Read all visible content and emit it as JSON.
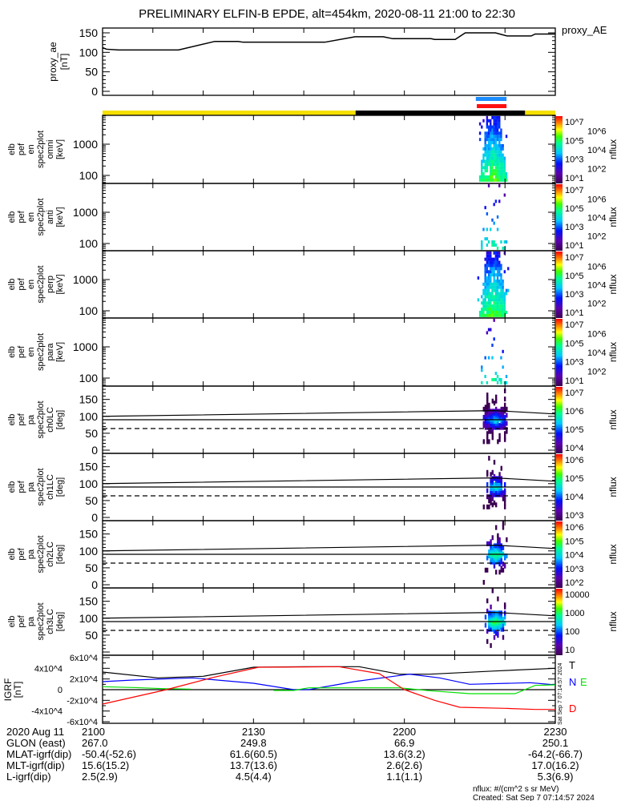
{
  "title": "PRELIMINARY ELFIN-B EPDE, alt=454km, 2020-08-11 21:00 to 22:30",
  "top_panel": {
    "ylabel": [
      "proxy_ae",
      "[nT]"
    ],
    "legend": "proxy_AE",
    "yticks": [
      "150",
      "100",
      "50",
      "0"
    ]
  },
  "panels": [
    {
      "ylabel": [
        "elb",
        "pef",
        "en",
        "spec2plot",
        "omni",
        "[keV]"
      ],
      "kind": "energy",
      "yticks": [
        "1000",
        "100"
      ],
      "cbar_label": "nflux",
      "cbar_ticks": [
        "10^7",
        "10^6",
        "10^5",
        "10^4",
        "10^3",
        "10^2",
        "10^1"
      ]
    },
    {
      "ylabel": [
        "elb",
        "pef",
        "en",
        "spec2plot",
        "anti",
        "[keV]"
      ],
      "kind": "energy",
      "yticks": [
        "1000",
        "100"
      ],
      "cbar_label": "nflux",
      "cbar_ticks": [
        "10^7",
        "10^6",
        "10^5",
        "10^4",
        "10^3",
        "10^2",
        "10^1"
      ]
    },
    {
      "ylabel": [
        "elb",
        "pef",
        "en",
        "spec2plot",
        "perp",
        "[keV]"
      ],
      "kind": "energy",
      "yticks": [
        "1000",
        "100"
      ],
      "cbar_label": "nflux",
      "cbar_ticks": [
        "10^7",
        "10^6",
        "10^5",
        "10^4",
        "10^3",
        "10^2",
        "10^1"
      ]
    },
    {
      "ylabel": [
        "elb",
        "pef",
        "en",
        "spec2plot",
        "para",
        "[keV]"
      ],
      "kind": "energy",
      "yticks": [
        "1000",
        "100"
      ],
      "cbar_label": "nflux",
      "cbar_ticks": [
        "10^7",
        "10^6",
        "10^5",
        "10^4",
        "10^3",
        "10^2",
        "10^1"
      ]
    },
    {
      "ylabel": [
        "elb",
        "pef",
        "pa",
        "spec2plot",
        "ch0LC",
        "[deg]"
      ],
      "kind": "pitch",
      "yticks": [
        "150",
        "100",
        "50",
        "0"
      ],
      "cbar_label": "nflux",
      "cbar_ticks": [
        "10^7",
        "10^6",
        "10^5",
        "10^4"
      ]
    },
    {
      "ylabel": [
        "elb",
        "pef",
        "pa",
        "spec2plot",
        "ch1LC",
        "[deg]"
      ],
      "kind": "pitch",
      "yticks": [
        "150",
        "100",
        "50",
        "0"
      ],
      "cbar_label": "nflux",
      "cbar_ticks": [
        "10^6",
        "10^5",
        "10^4",
        "10^3"
      ]
    },
    {
      "ylabel": [
        "elb",
        "pef",
        "pa",
        "spec2plot",
        "ch2LC",
        "[deg]"
      ],
      "kind": "pitch",
      "yticks": [
        "150",
        "100",
        "50",
        "0"
      ],
      "cbar_label": "nflux",
      "cbar_ticks": [
        "10^6",
        "10^5",
        "10^4",
        "10^3",
        "10^2"
      ]
    },
    {
      "ylabel": [
        "elb",
        "pef",
        "pa",
        "spec2plot",
        "ch3LC",
        "[deg]"
      ],
      "kind": "pitch",
      "yticks": [
        "150",
        "100",
        "50"
      ],
      "cbar_label": "nflux",
      "cbar_ticks": [
        "10000",
        "1000",
        "100",
        "10"
      ]
    }
  ],
  "igrf": {
    "ylabel": [
      "IGRF",
      "[nT]"
    ],
    "yticks": [
      "6x10^4",
      "4x10^4",
      "2x10^4",
      "0",
      "-2x10^4",
      "-4x10^4",
      "-6x10^4"
    ],
    "legend": [
      "T",
      "N",
      "E",
      "D"
    ]
  },
  "footer_table": [
    {
      "label": "2020 Aug 11",
      "values": [
        "2100",
        "2130",
        "2200",
        "2230"
      ]
    },
    {
      "label": "GLON (east)",
      "values": [
        "267.0",
        "249.8",
        "66.9",
        "250.1"
      ]
    },
    {
      "label": "MLAT-igrf(dip)",
      "values": [
        "-50.4(-52.6)",
        "61.6(60.5)",
        "13.6(3.2)",
        "-64.2(-66.7)"
      ]
    },
    {
      "label": "MLT-igrf(dip)",
      "values": [
        "15.6(15.2)",
        "13.7(13.6)",
        "2.6(2.6)",
        "17.0(16.2)"
      ]
    },
    {
      "label": "L-igrf(dip)",
      "values": [
        "2.5(2.9)",
        "4.5(4.4)",
        "1.1(1.1)",
        "5.3(6.9)"
      ]
    }
  ],
  "footer": {
    "units": "nflux: #/(cm^2 s sr MeV)",
    "created": "Created: Sat Sep  7 07:14:57 2024",
    "side_stamp": "Sat Sep  7 07:14:57 2024"
  },
  "colors": {
    "sunlit": "#f5e000",
    "eclipse": "#000000",
    "ind_blue": "#1a8cff",
    "ind_red": "#ff1010",
    "T": "#000000",
    "N": "#0000ff",
    "E": "#00e000",
    "D": "#ff0000"
  },
  "chart_data": {
    "type": "line+heatmap",
    "x_unit": "minutes after 21:00 UT",
    "xlim": [
      0,
      90
    ],
    "proxy_ae": {
      "ylim": [
        0,
        150
      ],
      "t": [
        0,
        0.8,
        3.2,
        15.1,
        22.3,
        27,
        27.9,
        44.2,
        50.2,
        55.8,
        57.7,
        65.3,
        66,
        70.1,
        72.1,
        78.1,
        80.4,
        85.2,
        86,
        90
      ],
      "values": [
        112,
        108,
        106,
        106,
        128,
        128,
        126,
        126,
        140,
        140,
        135,
        135,
        133,
        133,
        150,
        150,
        142,
        142,
        147,
        147
      ]
    },
    "state_bar": [
      {
        "start": 0,
        "end": 50.3,
        "state": "sunlit"
      },
      {
        "start": 50.3,
        "end": 84,
        "state": "eclipse"
      },
      {
        "start": 84,
        "end": 90,
        "state": "sunlit"
      }
    ],
    "science_zone_bars": [
      {
        "start": 74.2,
        "end": 80.3,
        "color": "ind_blue"
      },
      {
        "start": 74.4,
        "end": 80.3,
        "color": "ind_red"
      }
    ],
    "energy_ylim_keV": [
      56,
      8400
    ],
    "pitch_ylim_deg": [
      0,
      180
    ],
    "event_window": [
      74.5,
      80.5
    ],
    "colorbar_log_ranges": [
      [
        0.5,
        7.2
      ],
      [
        0.5,
        7.2
      ],
      [
        0.5,
        7.2
      ],
      [
        0.5,
        7.2
      ],
      [
        3.3,
        7.2
      ],
      [
        2.8,
        6.6
      ],
      [
        1.6,
        6.1
      ],
      [
        0.9,
        4.4
      ]
    ],
    "pitch_lines": {
      "loss_cone_upper": {
        "t": [
          0,
          78,
          90
        ],
        "values": [
          100,
          117,
          107
        ]
      },
      "perpendicular": 90,
      "loss_cone_dashed": 64
    },
    "igrf": {
      "ylim": [
        -60000,
        60000
      ],
      "series": [
        {
          "name": "T",
          "t": [
            0,
            11,
            20,
            30,
            40,
            51,
            59,
            65,
            78,
            90
          ],
          "values": [
            33000,
            22000,
            25000,
            42000,
            43000,
            43000,
            29000,
            29000,
            35000,
            40000
          ]
        },
        {
          "name": "N",
          "t": [
            0,
            6,
            18,
            30,
            38,
            41,
            50,
            61,
            67,
            73,
            85,
            90
          ],
          "values": [
            15000,
            18000,
            22000,
            12000,
            0,
            0,
            15000,
            29000,
            22000,
            10000,
            13000,
            9000
          ]
        },
        {
          "name": "E",
          "t": [
            0,
            6,
            12,
            17.5,
            17.6,
            34,
            38,
            41,
            59,
            65,
            73,
            82,
            86,
            90
          ],
          "values": [
            5500,
            4000,
            2000,
            1000,
            null,
            -1500,
            -1500,
            3500,
            3500,
            -2000,
            -7500,
            -7500,
            8000,
            9000
          ]
        },
        {
          "name": "D",
          "t": [
            0,
            12.7,
            22,
            31,
            47,
            55,
            60,
            66,
            71,
            80,
            86,
            90
          ],
          "values": [
            -27000,
            0,
            23000,
            42000,
            43000,
            30000,
            0,
            -20000,
            -33000,
            -35000,
            -37000,
            -37000
          ]
        }
      ]
    }
  }
}
